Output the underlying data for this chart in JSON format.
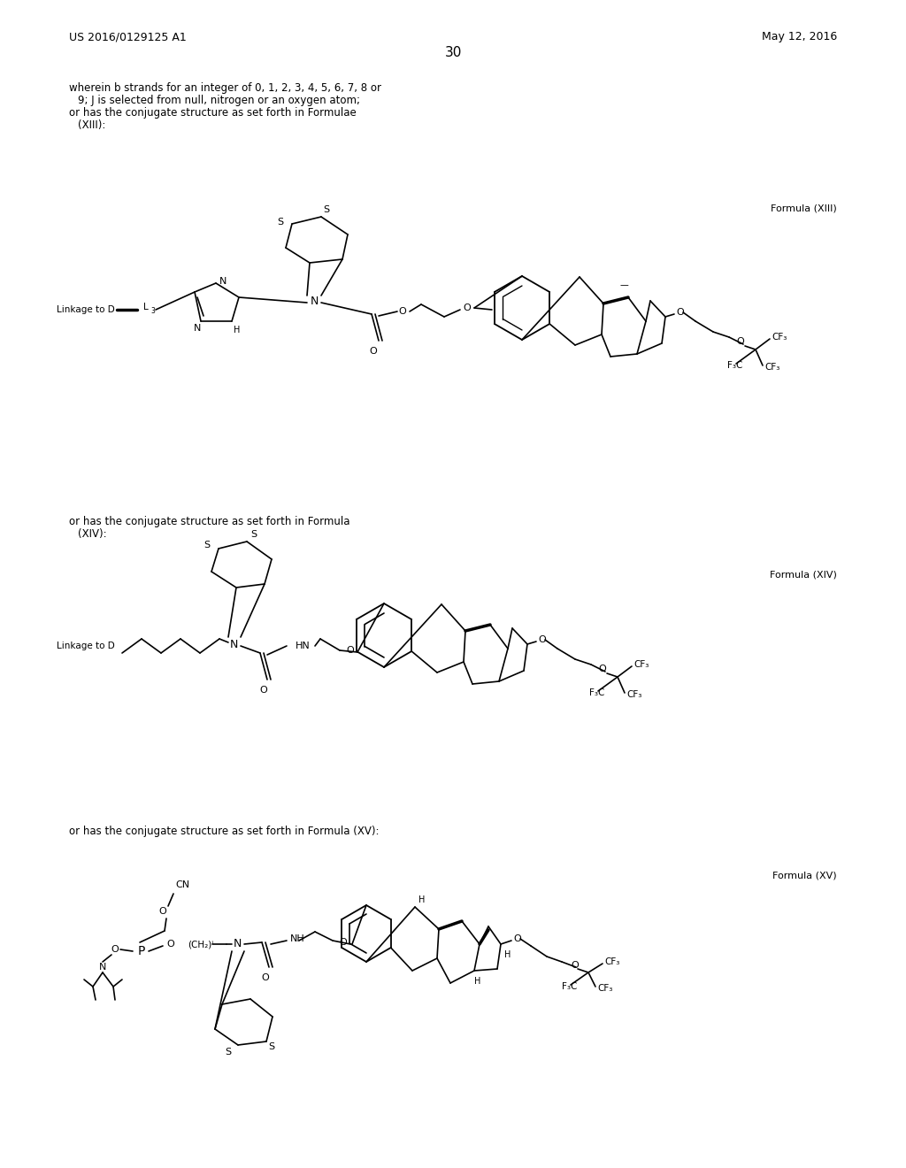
{
  "background_color": "#ffffff",
  "page_number": "30",
  "patent_number": "US 2016/0129125 A1",
  "patent_date": "May 12, 2016",
  "text_color": "#000000",
  "line_color": "#000000"
}
